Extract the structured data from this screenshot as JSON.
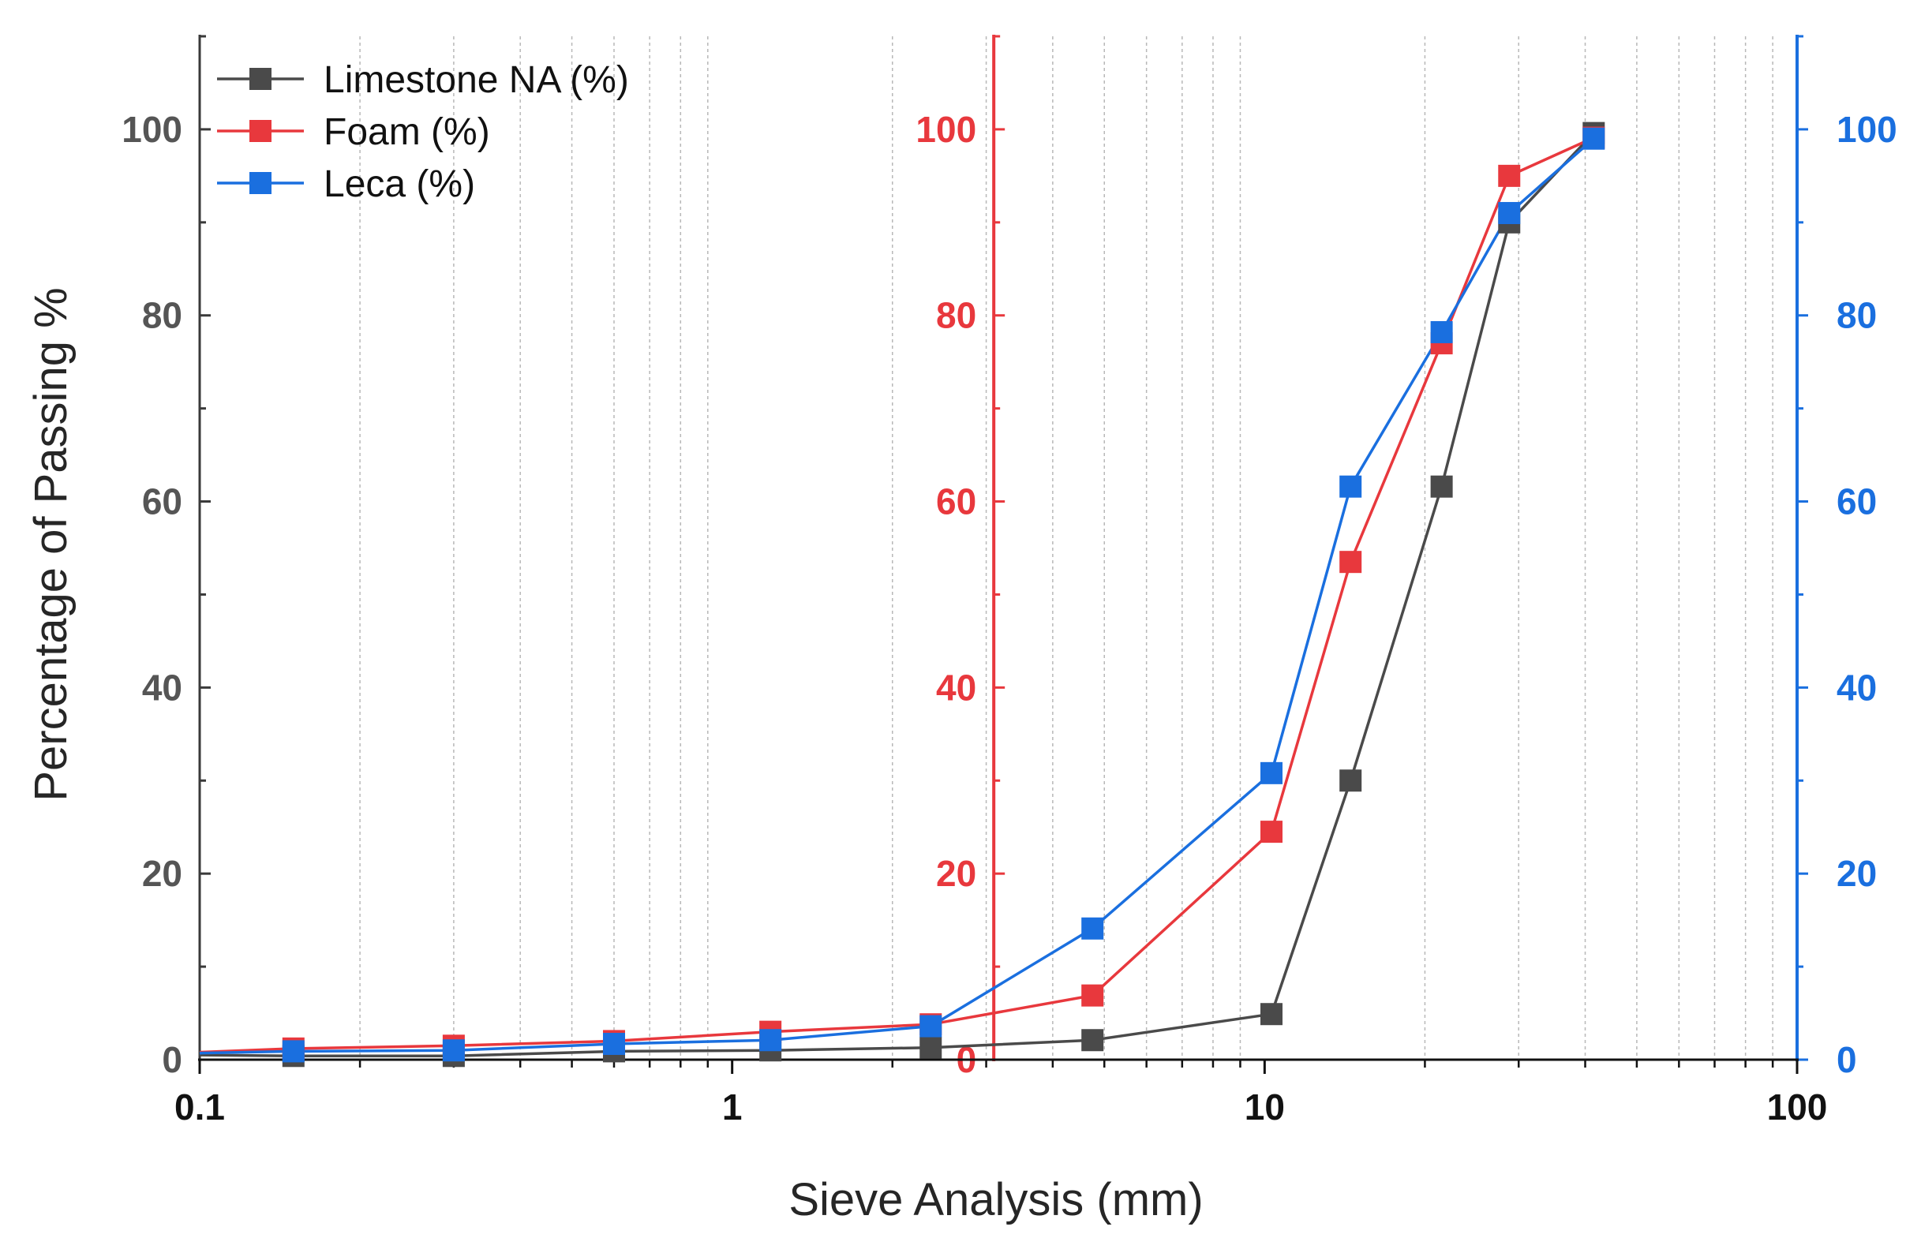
{
  "chart_data": {
    "type": "line",
    "x_scale": "log",
    "xlabel": "Sieve Analysis (mm)",
    "ylabel": "Percentage of Passing %",
    "xlim": [
      0.1,
      100
    ],
    "ylim": [
      0,
      110
    ],
    "x_ticks": [
      0.1,
      1,
      10,
      100
    ],
    "x_tick_labels": [
      "0.1",
      "1",
      "10",
      "100"
    ],
    "y_ticks": [
      0,
      20,
      40,
      60,
      80,
      100
    ],
    "y_tick_labels": [
      "0",
      "20",
      "40",
      "60",
      "80",
      "100"
    ],
    "red_axis": {
      "position_x_value": 3.1,
      "color": "#e8383d",
      "tick_labels": [
        "0",
        "20",
        "40",
        "60",
        "80",
        "100"
      ]
    },
    "right_axis": {
      "color": "#1a6fdf",
      "tick_labels": [
        "0",
        "20",
        "40",
        "60",
        "80",
        "100"
      ]
    },
    "grid": "vertical minor, dotted",
    "legend_position": "top-left",
    "series": [
      {
        "name": "Limestone NA (%)",
        "color": "#4a4a4a",
        "x": [
          0.1,
          0.15,
          0.3,
          0.6,
          1.18,
          2.36,
          4.75,
          10.3,
          14.5,
          21.5,
          28.8,
          41.5
        ],
        "y": [
          0.5,
          0.4,
          0.4,
          0.9,
          1.0,
          1.3,
          2.1,
          4.9,
          30.0,
          61.6,
          90.0,
          99.6
        ]
      },
      {
        "name": "Foam (%)",
        "color": "#e8383d",
        "x": [
          0.1,
          0.15,
          0.3,
          0.6,
          1.18,
          2.36,
          4.75,
          10.3,
          14.5,
          21.5,
          28.8,
          41.5
        ],
        "y": [
          0.8,
          1.2,
          1.5,
          2.0,
          3.0,
          3.8,
          6.9,
          24.5,
          53.5,
          77.0,
          95.0,
          99.1
        ]
      },
      {
        "name": "Leca (%)",
        "color": "#1a6fdf",
        "x": [
          0.1,
          0.15,
          0.3,
          0.6,
          1.18,
          2.36,
          4.75,
          10.3,
          14.5,
          21.5,
          28.8,
          41.5
        ],
        "y": [
          0.7,
          0.9,
          1.0,
          1.7,
          2.1,
          3.6,
          14.1,
          30.8,
          61.6,
          78.2,
          91.0,
          99.0
        ]
      }
    ]
  }
}
